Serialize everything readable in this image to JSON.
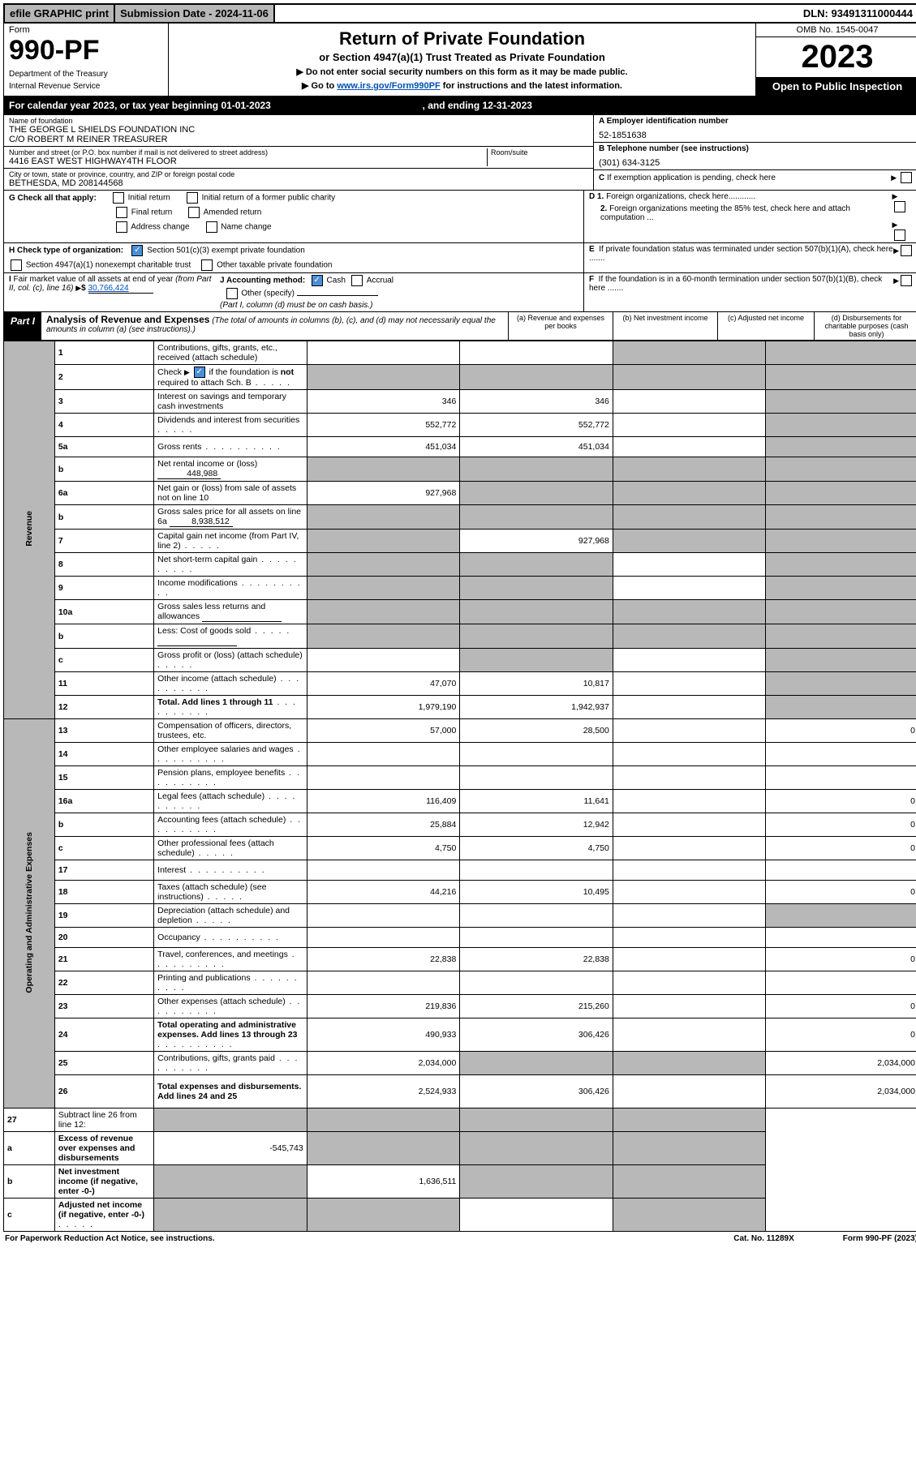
{
  "topBar": {
    "efile": "efile GRAPHIC print",
    "subDateLabel": "Submission Date - ",
    "subDate": "2024-11-06",
    "dlnLabel": "DLN: ",
    "dln": "93491311000444"
  },
  "header": {
    "formLabel": "Form",
    "formNumber": "990-PF",
    "dept1": "Department of the Treasury",
    "dept2": "Internal Revenue Service",
    "title": "Return of Private Foundation",
    "subtitle": "or Section 4947(a)(1) Trust Treated as Private Foundation",
    "note1": "▶ Do not enter social security numbers on this form as it may be made public.",
    "note2a": "▶ Go to ",
    "note2link": "www.irs.gov/Form990PF",
    "note2b": " for instructions and the latest information.",
    "omb": "OMB No. 1545-0047",
    "year": "2023",
    "openPublic": "Open to Public Inspection"
  },
  "calYear": {
    "prefix": "For calendar year 2023, or tax year beginning ",
    "begin": "01-01-2023",
    "mid": " , and ending ",
    "end": "12-31-2023"
  },
  "info": {
    "nameLabel": "Name of foundation",
    "name1": "THE GEORGE L SHIELDS FOUNDATION INC",
    "name2": "C/O ROBERT M REINER TREASURER",
    "addrLabel": "Number and street (or P.O. box number if mail is not delivered to street address)",
    "addr": "4416 EAST WEST HIGHWAY4TH FLOOR",
    "roomLabel": "Room/suite",
    "cityLabel": "City or town, state or province, country, and ZIP or foreign postal code",
    "city": "BETHESDA, MD  208144568",
    "einLabel": "A Employer identification number",
    "ein": "52-1851638",
    "telLabel": "B Telephone number (see instructions)",
    "tel": "(301) 634-3125",
    "cLabel": "C If exemption application is pending, check here",
    "gLabel": "G Check all that apply:",
    "g1": "Initial return",
    "g2": "Initial return of a former public charity",
    "g3": "Final return",
    "g4": "Amended return",
    "g5": "Address change",
    "g6": "Name change",
    "d1": "D 1. Foreign organizations, check here............",
    "d2": "2. Foreign organizations meeting the 85% test, check here and attach computation ...",
    "hLabel": "H Check type of organization:",
    "h1": "Section 501(c)(3) exempt private foundation",
    "h2": "Section 4947(a)(1) nonexempt charitable trust",
    "h3": "Other taxable private foundation",
    "eLabel": "E  If private foundation status was terminated under section 507(b)(1)(A), check here .......",
    "iLabel": "I Fair market value of all assets at end of year (from Part II, col. (c), line 16)",
    "iVal": "30,766,424",
    "jLabel": "J Accounting method:",
    "j1": "Cash",
    "j2": "Accrual",
    "j3": "Other (specify)",
    "jNote": "(Part I, column (d) must be on cash basis.)",
    "fLabel": "F  If the foundation is in a 60-month termination under section 507(b)(1)(B), check here ......."
  },
  "part1": {
    "label": "Part I",
    "title": "Analysis of Revenue and Expenses",
    "titleNote": "(The total of amounts in columns (b), (c), and (d) may not necessarily equal the amounts in column (a) (see instructions).)",
    "colA": "(a)   Revenue and expenses per books",
    "colB": "(b)   Net investment income",
    "colC": "(c)   Adjusted net income",
    "colD": "(d)   Disbursements for charitable purposes (cash basis only)"
  },
  "sideRevenue": "Revenue",
  "sideExpenses": "Operating and Administrative Expenses",
  "rows": [
    {
      "n": "1",
      "d": "Contributions, gifts, grants, etc., received (attach schedule)",
      "a": "",
      "b": "",
      "cGrey": true,
      "dGrey": true
    },
    {
      "n": "2",
      "d": "Check ▶ ☑ if the foundation is not required to attach Sch. B",
      "dotsShort": true,
      "a": "",
      "b": "",
      "aGrey": true,
      "bGrey": true,
      "cGrey": true,
      "dGrey": true,
      "checkDesc": true
    },
    {
      "n": "3",
      "d": "Interest on savings and temporary cash investments",
      "a": "346",
      "b": "346",
      "dGrey": true
    },
    {
      "n": "4",
      "d": "Dividends and interest from securities",
      "dotsShort": true,
      "a": "552,772",
      "b": "552,772",
      "dGrey": true
    },
    {
      "n": "5a",
      "d": "Gross rents",
      "dots": true,
      "a": "451,034",
      "b": "451,034",
      "dGrey": true
    },
    {
      "n": "b",
      "d": "Net rental income or (loss)",
      "inlineVal": "448,988",
      "aGrey": true,
      "bGrey": true,
      "cGrey": true,
      "dGrey": true
    },
    {
      "n": "6a",
      "d": "Net gain or (loss) from sale of assets not on line 10",
      "a": "927,968",
      "bGrey": true,
      "cGrey": true,
      "dGrey": true
    },
    {
      "n": "b",
      "d": "Gross sales price for all assets on line 6a",
      "inlineVal": "8,938,512",
      "aGrey": true,
      "bGrey": true,
      "cGrey": true,
      "dGrey": true
    },
    {
      "n": "7",
      "d": "Capital gain net income (from Part IV, line 2)",
      "dotsShort": true,
      "aGrey": true,
      "b": "927,968",
      "cGrey": true,
      "dGrey": true
    },
    {
      "n": "8",
      "d": "Net short-term capital gain",
      "dots": true,
      "aGrey": true,
      "bGrey": true,
      "dGrey": true
    },
    {
      "n": "9",
      "d": "Income modifications",
      "dots": true,
      "aGrey": true,
      "bGrey": true,
      "dGrey": true
    },
    {
      "n": "10a",
      "d": "Gross sales less returns and allowances",
      "inlineBlank": true,
      "aGrey": true,
      "bGrey": true,
      "cGrey": true,
      "dGrey": true
    },
    {
      "n": "b",
      "d": "Less: Cost of goods sold",
      "dotsShort": true,
      "inlineBlank": true,
      "aGrey": true,
      "bGrey": true,
      "cGrey": true,
      "dGrey": true
    },
    {
      "n": "c",
      "d": "Gross profit or (loss) (attach schedule)",
      "dotsShort": true,
      "aGrey": false,
      "bGrey": true,
      "dGrey": true
    },
    {
      "n": "11",
      "d": "Other income (attach schedule)",
      "dots": true,
      "a": "47,070",
      "b": "10,817",
      "dGrey": true
    },
    {
      "n": "12",
      "d": "Total. Add lines 1 through 11",
      "dots": true,
      "bold": true,
      "a": "1,979,190",
      "b": "1,942,937",
      "dGrey": true
    }
  ],
  "rowsExp": [
    {
      "n": "13",
      "d": "Compensation of officers, directors, trustees, etc.",
      "a": "57,000",
      "b": "28,500",
      "dVal": "0"
    },
    {
      "n": "14",
      "d": "Other employee salaries and wages",
      "dots": true
    },
    {
      "n": "15",
      "d": "Pension plans, employee benefits",
      "dots": true
    },
    {
      "n": "16a",
      "d": "Legal fees (attach schedule)",
      "dots": true,
      "a": "116,409",
      "b": "11,641",
      "dVal": "0"
    },
    {
      "n": "b",
      "d": "Accounting fees (attach schedule)",
      "dots": true,
      "a": "25,884",
      "b": "12,942",
      "dVal": "0"
    },
    {
      "n": "c",
      "d": "Other professional fees (attach schedule)",
      "dotsShort": true,
      "a": "4,750",
      "b": "4,750",
      "dVal": "0"
    },
    {
      "n": "17",
      "d": "Interest",
      "dots": true
    },
    {
      "n": "18",
      "d": "Taxes (attach schedule) (see instructions)",
      "dotsShort": true,
      "a": "44,216",
      "b": "10,495",
      "dVal": "0"
    },
    {
      "n": "19",
      "d": "Depreciation (attach schedule) and depletion",
      "dotsShort": true,
      "dGrey": true
    },
    {
      "n": "20",
      "d": "Occupancy",
      "dots": true
    },
    {
      "n": "21",
      "d": "Travel, conferences, and meetings",
      "dots": true,
      "a": "22,838",
      "b": "22,838",
      "dVal": "0"
    },
    {
      "n": "22",
      "d": "Printing and publications",
      "dots": true
    },
    {
      "n": "23",
      "d": "Other expenses (attach schedule)",
      "dots": true,
      "a": "219,836",
      "b": "215,260",
      "dVal": "0"
    },
    {
      "n": "24",
      "d": "Total operating and administrative expenses. Add lines 13 through 23",
      "dots": true,
      "bold": true,
      "a": "490,933",
      "b": "306,426",
      "dVal": "0",
      "tall": true
    },
    {
      "n": "25",
      "d": "Contributions, gifts, grants paid",
      "dots": true,
      "a": "2,034,000",
      "bGrey": true,
      "cGrey": true,
      "dVal": "2,034,000"
    },
    {
      "n": "26",
      "d": "Total expenses and disbursements. Add lines 24 and 25",
      "bold": true,
      "a": "2,524,933",
      "b": "306,426",
      "dVal": "2,034,000",
      "tall": true
    }
  ],
  "rowsNet": [
    {
      "n": "27",
      "d": "Subtract line 26 from line 12:",
      "aGrey": true,
      "bGrey": true,
      "cGrey": true,
      "dGrey": true
    },
    {
      "n": "a",
      "d": "Excess of revenue over expenses and disbursements",
      "bold": true,
      "a": "-545,743",
      "bGrey": true,
      "cGrey": true,
      "dGrey": true
    },
    {
      "n": "b",
      "d": "Net investment income (if negative, enter -0-)",
      "bold": true,
      "aGrey": true,
      "b": "1,636,511",
      "cGrey": true,
      "dGrey": true
    },
    {
      "n": "c",
      "d": "Adjusted net income (if negative, enter -0-)",
      "dotsShort": true,
      "bold": true,
      "aGrey": true,
      "bGrey": true,
      "dGrey": true
    }
  ],
  "footer": {
    "left": "For Paperwork Reduction Act Notice, see instructions.",
    "mid": "Cat. No. 11289X",
    "right": "Form 990-PF (2023)"
  }
}
